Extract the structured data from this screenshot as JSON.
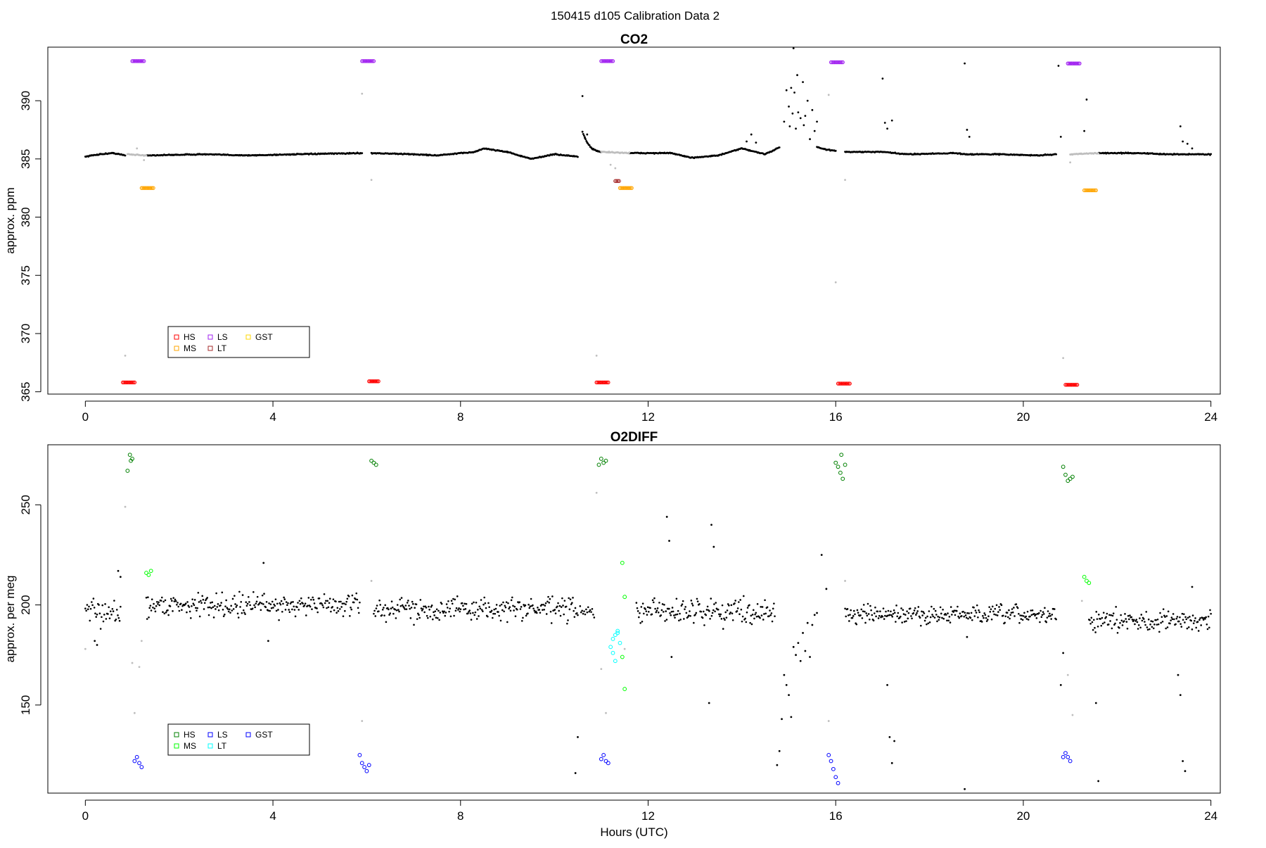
{
  "page_title": "150415   d105   Calibration Data 2",
  "chart_data": [
    {
      "type": "scatter",
      "title": "CO2",
      "xlabel": "",
      "ylabel": "approx. ppm",
      "xlim": [
        -0.8,
        24.2
      ],
      "ylim": [
        364.8,
        394.6
      ],
      "xticks": [
        "0",
        "4",
        "8",
        "12",
        "16",
        "20",
        "24"
      ],
      "yticks": [
        "365",
        "370",
        "375",
        "380",
        "385",
        "390"
      ],
      "legend": {
        "position": "bottom-left",
        "entries": [
          {
            "label": "HS",
            "color": "#ff0000"
          },
          {
            "label": "MS",
            "color": "#ffa500"
          },
          {
            "label": "LS",
            "color": "#a020f0"
          },
          {
            "label": "LT",
            "color": "#a52a2a"
          },
          {
            "label": "GST",
            "color": "#ffd700"
          }
        ]
      },
      "baseline": {
        "color": "#000000",
        "segments": [
          {
            "x": [
              0,
              0.3,
              0.6,
              0.85
            ],
            "y": [
              385.2,
              385.4,
              385.5,
              385.3
            ]
          },
          {
            "x": [
              1.3,
              2.5,
              3.5,
              4.5,
              5.9
            ],
            "y": [
              385.3,
              385.4,
              385.3,
              385.4,
              385.5
            ]
          },
          {
            "x": [
              6.1,
              7.0,
              7.5,
              8.3,
              8.5,
              9.0,
              9.5,
              10.0,
              10.5
            ],
            "y": [
              385.5,
              385.4,
              385.3,
              385.6,
              385.9,
              385.6,
              385.0,
              385.4,
              385.2
            ]
          },
          {
            "x": [
              10.6,
              10.7,
              10.8,
              10.9,
              11.0
            ],
            "y": [
              387.3,
              386.4,
              385.9,
              385.7,
              385.6
            ]
          },
          {
            "x": [
              11.6,
              12.5,
              12.9,
              13.5,
              14.0,
              14.5,
              14.8
            ],
            "y": [
              385.5,
              385.5,
              385.1,
              385.3,
              385.9,
              385.4,
              386.0
            ]
          },
          {
            "x": [
              15.6,
              15.8,
              16.0
            ],
            "y": [
              386.0,
              385.8,
              385.7
            ]
          },
          {
            "x": [
              16.2,
              17.0,
              17.5,
              18.5,
              18.8,
              19.5,
              20.3,
              20.7
            ],
            "y": [
              385.6,
              385.6,
              385.4,
              385.5,
              385.4,
              385.4,
              385.3,
              385.4
            ]
          },
          {
            "x": [
              21.6,
              22.5,
              23.0,
              23.4,
              24.0
            ],
            "y": [
              385.5,
              385.5,
              385.4,
              385.4,
              385.4
            ]
          }
        ]
      },
      "baseline_gray": {
        "color": "#bebebe",
        "segments": [
          {
            "x": [
              0.9,
              1.3
            ],
            "y": [
              385.4,
              385.3
            ]
          },
          {
            "x": [
              11.0,
              11.6
            ],
            "y": [
              385.6,
              385.5
            ]
          },
          {
            "x": [
              21.0,
              21.6
            ],
            "y": [
              385.4,
              385.5
            ]
          }
        ]
      },
      "scatter_black": [
        [
          10.6,
          390.4
        ],
        [
          10.65,
          386.8
        ],
        [
          10.7,
          387.1
        ],
        [
          14.1,
          386.5
        ],
        [
          14.2,
          387.1
        ],
        [
          14.3,
          386.4
        ],
        [
          14.9,
          388.2
        ],
        [
          14.95,
          390.9
        ],
        [
          15.0,
          389.5
        ],
        [
          15.02,
          387.8
        ],
        [
          15.05,
          391.1
        ],
        [
          15.08,
          388.9
        ],
        [
          15.1,
          394.5
        ],
        [
          15.12,
          390.7
        ],
        [
          15.15,
          387.6
        ],
        [
          15.18,
          392.2
        ],
        [
          15.2,
          389.0
        ],
        [
          15.25,
          388.5
        ],
        [
          15.3,
          391.6
        ],
        [
          15.32,
          387.9
        ],
        [
          15.35,
          388.7
        ],
        [
          15.4,
          390.0
        ],
        [
          15.45,
          386.7
        ],
        [
          15.5,
          389.2
        ],
        [
          15.55,
          387.4
        ],
        [
          15.6,
          388.2
        ],
        [
          17.0,
          391.9
        ],
        [
          17.05,
          388.1
        ],
        [
          17.1,
          387.6
        ],
        [
          17.2,
          388.3
        ],
        [
          18.75,
          393.2
        ],
        [
          18.8,
          387.5
        ],
        [
          18.85,
          386.9
        ],
        [
          20.75,
          393.0
        ],
        [
          20.8,
          386.9
        ],
        [
          21.35,
          390.1
        ],
        [
          21.3,
          387.4
        ],
        [
          23.35,
          387.8
        ],
        [
          23.4,
          386.5
        ],
        [
          23.5,
          386.3
        ],
        [
          23.6,
          385.9
        ]
      ],
      "scatter_gray": [
        [
          0.85,
          368.1
        ],
        [
          1.1,
          385.9
        ],
        [
          1.25,
          384.9
        ],
        [
          5.9,
          390.6
        ],
        [
          6.1,
          383.2
        ],
        [
          10.9,
          368.1
        ],
        [
          11.2,
          384.5
        ],
        [
          11.3,
          384.2
        ],
        [
          16.0,
          374.4
        ],
        [
          15.85,
          390.5
        ],
        [
          16.2,
          383.2
        ],
        [
          20.85,
          367.9
        ],
        [
          21.0,
          384.7
        ]
      ],
      "calibrations": [
        {
          "label": "LS",
          "color": "#a020f0",
          "points": [
            [
              1.0,
              393.4
            ],
            [
              1.25,
              393.4
            ],
            [
              5.9,
              393.4
            ],
            [
              6.15,
              393.4
            ],
            [
              11.0,
              393.4
            ],
            [
              11.25,
              393.4
            ],
            [
              15.9,
              393.3
            ],
            [
              16.15,
              393.3
            ],
            [
              20.95,
              393.2
            ],
            [
              21.2,
              393.2
            ]
          ]
        },
        {
          "label": "MS",
          "color": "#ffa500",
          "points": [
            [
              1.2,
              382.5
            ],
            [
              1.45,
              382.5
            ],
            [
              11.4,
              382.5
            ],
            [
              11.65,
              382.5
            ],
            [
              21.3,
              382.3
            ],
            [
              21.55,
              382.3
            ]
          ]
        },
        {
          "label": "LT",
          "color": "#a52a2a",
          "points": [
            [
              11.3,
              383.1
            ],
            [
              11.38,
              383.1
            ]
          ]
        },
        {
          "label": "HS",
          "color": "#ff0000",
          "points": [
            [
              0.8,
              365.8
            ],
            [
              1.05,
              365.8
            ],
            [
              6.05,
              365.9
            ],
            [
              6.25,
              365.9
            ],
            [
              10.9,
              365.8
            ],
            [
              11.15,
              365.8
            ],
            [
              16.05,
              365.7
            ],
            [
              16.3,
              365.7
            ],
            [
              20.9,
              365.6
            ],
            [
              21.15,
              365.6
            ]
          ]
        }
      ]
    },
    {
      "type": "scatter",
      "title": "O2DIFF",
      "xlabel": "Hours (UTC)",
      "ylabel": "approx. per meg",
      "xlim": [
        -0.8,
        24.2
      ],
      "ylim": [
        106,
        280
      ],
      "xticks": [
        "0",
        "4",
        "8",
        "12",
        "16",
        "20",
        "24"
      ],
      "yticks": [
        "150",
        "200",
        "250"
      ],
      "legend": {
        "position": "bottom-left",
        "entries": [
          {
            "label": "HS",
            "color": "#008000"
          },
          {
            "label": "MS",
            "color": "#00ff00"
          },
          {
            "label": "LS",
            "color": "#0000ff"
          },
          {
            "label": "LT",
            "color": "#00ffff"
          },
          {
            "label": "GST",
            "color": "#0000ff"
          }
        ]
      },
      "noise_segments": [
        {
          "x0": 0.0,
          "x1": 0.75,
          "mean": 196,
          "sd": 6,
          "n": 40
        },
        {
          "x0": 1.3,
          "x1": 5.85,
          "mean": 200,
          "sd": 5.5,
          "n": 260
        },
        {
          "x0": 6.15,
          "x1": 10.5,
          "mean": 198,
          "sd": 5.5,
          "n": 250
        },
        {
          "x0": 10.55,
          "x1": 10.85,
          "mean": 196,
          "sd": 4,
          "n": 15
        },
        {
          "x0": 11.75,
          "x1": 14.7,
          "mean": 197,
          "sd": 6,
          "n": 170
        },
        {
          "x0": 16.2,
          "x1": 20.7,
          "mean": 195,
          "sd": 4.5,
          "n": 260
        },
        {
          "x0": 21.4,
          "x1": 24.0,
          "mean": 192,
          "sd": 5,
          "n": 150
        }
      ],
      "scatter_black": [
        [
          0.7,
          217
        ],
        [
          0.75,
          214
        ],
        [
          0.2,
          182
        ],
        [
          0.25,
          180
        ],
        [
          3.8,
          221
        ],
        [
          3.9,
          182
        ],
        [
          10.5,
          134
        ],
        [
          10.45,
          116
        ],
        [
          12.4,
          244
        ],
        [
          12.45,
          232
        ],
        [
          12.5,
          174
        ],
        [
          13.3,
          151
        ],
        [
          13.35,
          240
        ],
        [
          13.4,
          229
        ],
        [
          14.75,
          120
        ],
        [
          14.8,
          127
        ],
        [
          14.85,
          143
        ],
        [
          14.9,
          165
        ],
        [
          14.95,
          160
        ],
        [
          15.0,
          155
        ],
        [
          15.05,
          144
        ],
        [
          15.1,
          179
        ],
        [
          15.15,
          175
        ],
        [
          15.2,
          181
        ],
        [
          15.25,
          172
        ],
        [
          15.3,
          186
        ],
        [
          15.35,
          177
        ],
        [
          15.4,
          191
        ],
        [
          15.45,
          174
        ],
        [
          15.5,
          190
        ],
        [
          15.55,
          195
        ],
        [
          15.6,
          196
        ],
        [
          15.7,
          225
        ],
        [
          15.8,
          208
        ],
        [
          17.1,
          160
        ],
        [
          17.15,
          134
        ],
        [
          17.2,
          121
        ],
        [
          17.25,
          132
        ],
        [
          18.75,
          108
        ],
        [
          18.8,
          184
        ],
        [
          20.8,
          160
        ],
        [
          20.85,
          176
        ],
        [
          21.55,
          151
        ],
        [
          21.6,
          112
        ],
        [
          23.3,
          165
        ],
        [
          23.35,
          155
        ],
        [
          23.4,
          122
        ],
        [
          23.45,
          117
        ],
        [
          23.6,
          209
        ]
      ],
      "scatter_gray": [
        [
          0.0,
          178
        ],
        [
          0.85,
          249
        ],
        [
          1.0,
          171
        ],
        [
          1.05,
          146
        ],
        [
          1.15,
          169
        ],
        [
          1.2,
          182
        ],
        [
          5.9,
          142
        ],
        [
          6.1,
          212
        ],
        [
          10.9,
          256
        ],
        [
          11.0,
          168
        ],
        [
          11.1,
          146
        ],
        [
          11.5,
          178
        ],
        [
          15.85,
          142
        ],
        [
          16.2,
          212
        ],
        [
          20.95,
          165
        ],
        [
          21.05,
          145
        ],
        [
          21.25,
          202
        ]
      ],
      "calibrations": [
        {
          "label": "HS",
          "color": "#008000",
          "points": [
            [
              0.9,
              267
            ],
            [
              0.95,
              275
            ],
            [
              0.97,
              272
            ],
            [
              1.0,
              273
            ],
            [
              6.1,
              272
            ],
            [
              6.15,
              271
            ],
            [
              6.2,
              270
            ],
            [
              10.95,
              270
            ],
            [
              11.0,
              273
            ],
            [
              11.05,
              271
            ],
            [
              11.1,
              272
            ],
            [
              16.0,
              271
            ],
            [
              16.05,
              269
            ],
            [
              16.1,
              266
            ],
            [
              16.12,
              275
            ],
            [
              16.15,
              263
            ],
            [
              16.2,
              270
            ],
            [
              20.85,
              269
            ],
            [
              20.9,
              265
            ],
            [
              20.95,
              262
            ],
            [
              21.0,
              263
            ],
            [
              21.05,
              264
            ]
          ]
        },
        {
          "label": "MS",
          "color": "#00ff00",
          "points": [
            [
              1.3,
              216
            ],
            [
              1.35,
              215
            ],
            [
              1.4,
              217
            ],
            [
              11.45,
              221
            ],
            [
              11.5,
              204
            ],
            [
              11.45,
              174
            ],
            [
              11.5,
              158
            ],
            [
              21.3,
              214
            ],
            [
              21.35,
              212
            ],
            [
              21.4,
              211
            ]
          ]
        },
        {
          "label": "LT",
          "color": "#00ffff",
          "points": [
            [
              11.2,
              179
            ],
            [
              11.25,
              183
            ],
            [
              11.3,
              185
            ],
            [
              11.35,
              187
            ],
            [
              11.4,
              181
            ],
            [
              11.3,
              172
            ],
            [
              11.25,
              176
            ],
            [
              11.35,
              186
            ]
          ]
        },
        {
          "label": "LS",
          "color": "#0000ff",
          "points": [
            [
              1.05,
              122
            ],
            [
              1.1,
              124
            ],
            [
              1.15,
              121
            ],
            [
              1.2,
              119
            ],
            [
              5.9,
              121
            ],
            [
              5.95,
              119
            ],
            [
              6.0,
              117
            ],
            [
              6.05,
              120
            ],
            [
              5.85,
              125
            ],
            [
              11.0,
              123
            ],
            [
              11.05,
              125
            ],
            [
              11.1,
              122
            ],
            [
              11.15,
              121
            ],
            [
              15.85,
              125
            ],
            [
              15.9,
              122
            ],
            [
              15.95,
              118
            ],
            [
              16.0,
              114
            ],
            [
              16.05,
              111
            ],
            [
              20.85,
              124
            ],
            [
              20.9,
              126
            ],
            [
              20.95,
              124
            ],
            [
              21.0,
              122
            ]
          ]
        }
      ]
    }
  ]
}
